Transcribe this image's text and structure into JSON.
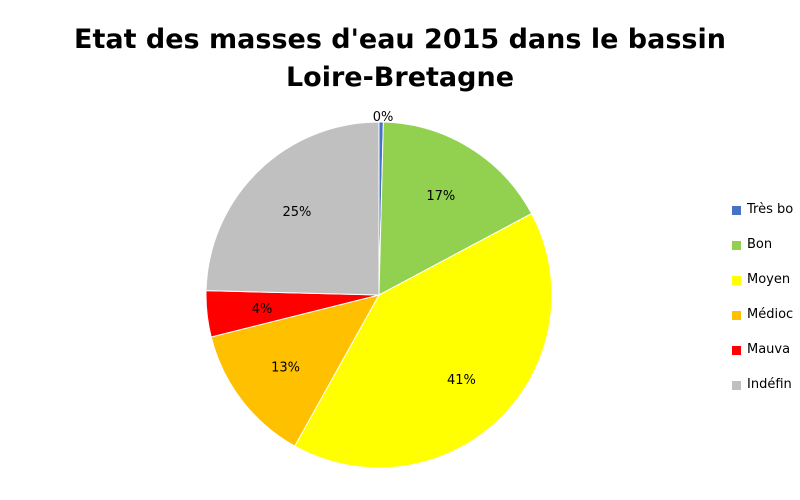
{
  "chart_data": {
    "type": "pie",
    "title_lines": [
      "Etat des masses d'eau 2015 dans le bassin",
      "Loire-Bretagne"
    ],
    "categories": [
      "Très bon",
      "Bon",
      "Moyen",
      "Médiocre",
      "Mauvais",
      "Indéfini"
    ],
    "legend_visible_text": [
      "Très bo",
      "Bon",
      "Moyen",
      "Médioc",
      "Mauva",
      "Indéfin"
    ],
    "values": [
      0.4,
      16.8,
      40.9,
      13.0,
      4.3,
      24.6
    ],
    "data_labels": [
      "0%",
      "17%",
      "41%",
      "13%",
      "4%",
      "25%"
    ],
    "colors": [
      "#4472C4",
      "#92D050",
      "#FFFF00",
      "#FFC000",
      "#FF0000",
      "#C0C0C0"
    ],
    "legend_position": "right",
    "start_angle": "top, clockwise"
  }
}
